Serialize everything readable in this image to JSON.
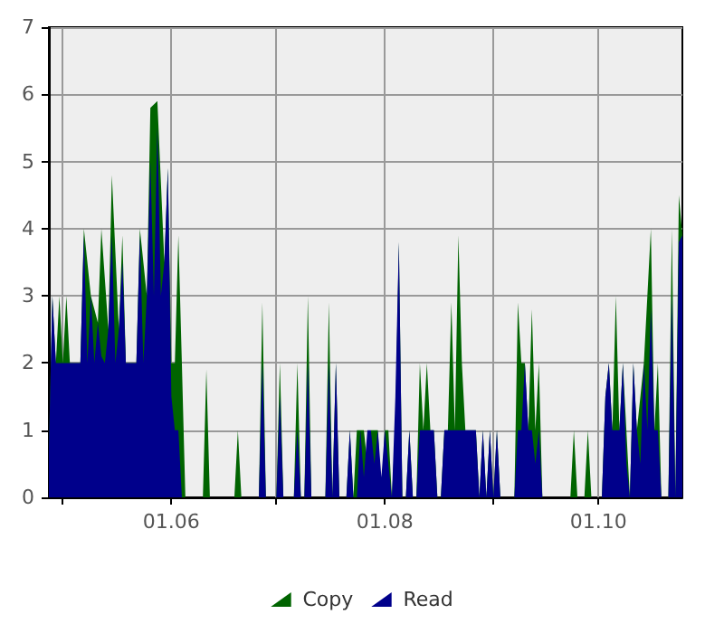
{
  "chart_data": {
    "type": "area",
    "x": [
      "--04-27",
      "--04-28",
      "--04-29",
      "--04-30",
      "--05-01",
      "--05-02",
      "--05-03",
      "--05-05",
      "--05-06",
      "--05-07",
      "--05-08",
      "--05-09",
      "--05-10",
      "--05-11",
      "--05-12",
      "--05-13",
      "--05-14",
      "--05-15",
      "--05-16",
      "--05-17",
      "--05-18",
      "--05-19",
      "--05-21",
      "--05-22",
      "--05-23",
      "--05-24",
      "--05-25",
      "--05-26",
      "--05-27",
      "--05-28",
      "--05-29",
      "--05-30",
      "--05-31",
      "--06-01",
      "--06-02",
      "--06-03",
      "--06-04",
      "--06-05",
      "--06-10",
      "--06-11",
      "--06-12",
      "--06-19",
      "--06-20",
      "--06-21",
      "--06-26",
      "--06-27",
      "--06-28",
      "--07-01",
      "--07-02",
      "--07-03",
      "--07-06",
      "--07-07",
      "--07-08",
      "--07-09",
      "--07-10",
      "--07-11",
      "--07-15",
      "--07-16",
      "--07-17",
      "--07-18",
      "--07-19",
      "--07-21",
      "--07-22",
      "--07-23",
      "--07-24",
      "--07-25",
      "--07-26",
      "--07-27",
      "--07-28",
      "--07-29",
      "--07-30",
      "--07-31",
      "--08-01",
      "--08-02",
      "--08-03",
      "--08-04",
      "--08-05",
      "--08-06",
      "--08-07",
      "--08-08",
      "--08-09",
      "--08-10",
      "--08-11",
      "--08-12",
      "--08-13",
      "--08-14",
      "--08-15",
      "--08-16",
      "--08-17",
      "--08-18",
      "--08-19",
      "--08-20",
      "--08-21",
      "--08-22",
      "--08-23",
      "--08-24",
      "--08-25",
      "--08-26",
      "--08-27",
      "--08-28",
      "--08-29",
      "--08-30",
      "--08-31",
      "--09-01",
      "--09-02",
      "--09-03",
      "--09-07",
      "--09-08",
      "--09-09",
      "--09-10",
      "--09-11",
      "--09-12",
      "--09-13",
      "--09-14",
      "--09-15",
      "--09-16",
      "--09-23",
      "--09-24",
      "--09-25",
      "--09-27",
      "--09-28",
      "--09-29",
      "--10-02",
      "--10-03",
      "--10-04",
      "--10-05",
      "--10-06",
      "--10-07",
      "--10-08",
      "--10-09",
      "--10-10",
      "--10-11",
      "--10-12",
      "--10-13",
      "--10-14",
      "--10-15",
      "--10-16",
      "--10-17",
      "--10-18",
      "--10-19",
      "--10-21",
      "--10-22",
      "--10-23",
      "--10-24",
      "--10-25"
    ],
    "series": [
      {
        "name": "Copy",
        "color": "#006400",
        "values": [
          0.7,
          3,
          2,
          3,
          2,
          3,
          2,
          2,
          2,
          4,
          null,
          3,
          null,
          2.6,
          4,
          null,
          2.5,
          4.8,
          null,
          2.5,
          3.9,
          2,
          2,
          2,
          4,
          null,
          3,
          5.8,
          null,
          5.9,
          null,
          3.5,
          4.9,
          2,
          2,
          3.9,
          2,
          0,
          0,
          1.9,
          0,
          0,
          1,
          0,
          0,
          2.9,
          0,
          0,
          2,
          0,
          0,
          2,
          0,
          0,
          3,
          0,
          0,
          2.9,
          0,
          2,
          0,
          0,
          1,
          0,
          1,
          1,
          1,
          0.5,
          1,
          1,
          1,
          0,
          1,
          1,
          0,
          1,
          3.8,
          0,
          0,
          1,
          0,
          0,
          2,
          1,
          2,
          1,
          1,
          0,
          0,
          1,
          1,
          2.9,
          1,
          3.9,
          2,
          1,
          1,
          1,
          1,
          0,
          1,
          0,
          1,
          0,
          1,
          0,
          0,
          2.9,
          2,
          2,
          1,
          2.8,
          1,
          2,
          0,
          0,
          0,
          1,
          0,
          0,
          1,
          0,
          0,
          1.5,
          2,
          1,
          3,
          1,
          2,
          1,
          0,
          2,
          1,
          null,
          2,
          null,
          4,
          1,
          2,
          0,
          0,
          4,
          0,
          4.5,
          3.9
        ]
      },
      {
        "name": "Read",
        "color": "#00008b",
        "values": [
          0.7,
          3,
          2,
          2,
          2,
          2,
          2,
          2,
          2,
          3.9,
          2,
          3,
          2,
          2.6,
          2.1,
          2,
          2.5,
          3.9,
          2,
          2.5,
          3.5,
          2,
          2,
          2,
          3.9,
          2,
          3,
          5,
          3,
          5.5,
          3,
          3.5,
          4.9,
          1.5,
          1,
          1,
          0,
          0,
          0,
          0,
          0,
          0,
          0,
          0,
          0,
          2,
          0,
          0,
          1.5,
          0,
          0,
          1,
          0,
          0,
          2,
          0,
          0,
          2,
          0,
          2,
          0,
          0,
          1,
          0,
          0,
          1,
          0.3,
          1,
          1,
          0.5,
          1,
          0.3,
          1,
          0.5,
          0,
          1.5,
          3.8,
          0,
          0,
          1,
          0,
          0,
          1,
          1,
          1,
          1,
          1,
          0,
          0,
          1,
          1,
          1,
          1,
          1,
          1,
          1,
          1,
          1,
          1,
          0,
          1,
          0,
          1,
          0,
          1,
          0,
          0,
          1,
          1,
          2,
          1,
          1,
          0.5,
          1,
          0,
          0,
          0,
          0,
          0,
          0,
          0,
          0,
          0,
          1.5,
          2,
          1,
          1,
          1,
          2,
          0.5,
          0,
          2,
          1,
          0.5,
          2,
          1,
          2.8,
          1,
          1,
          0,
          0,
          3,
          0,
          3.8,
          3.9
        ]
      }
    ],
    "xlim": [
      "--04-27",
      "--10-25"
    ],
    "xticks": [
      {
        "value": "--05-01",
        "label": null
      },
      {
        "value": "--06-01",
        "label": "01.06"
      },
      {
        "value": "--07-01",
        "label": null
      },
      {
        "value": "--08-01",
        "label": "01.08"
      },
      {
        "value": "--09-01",
        "label": null
      },
      {
        "value": "--10-01",
        "label": "01.10"
      }
    ],
    "ylim": [
      0,
      7
    ],
    "yticks": [
      0,
      1,
      2,
      3,
      4,
      5,
      6,
      7
    ],
    "grid": true,
    "legend": "bottom"
  }
}
